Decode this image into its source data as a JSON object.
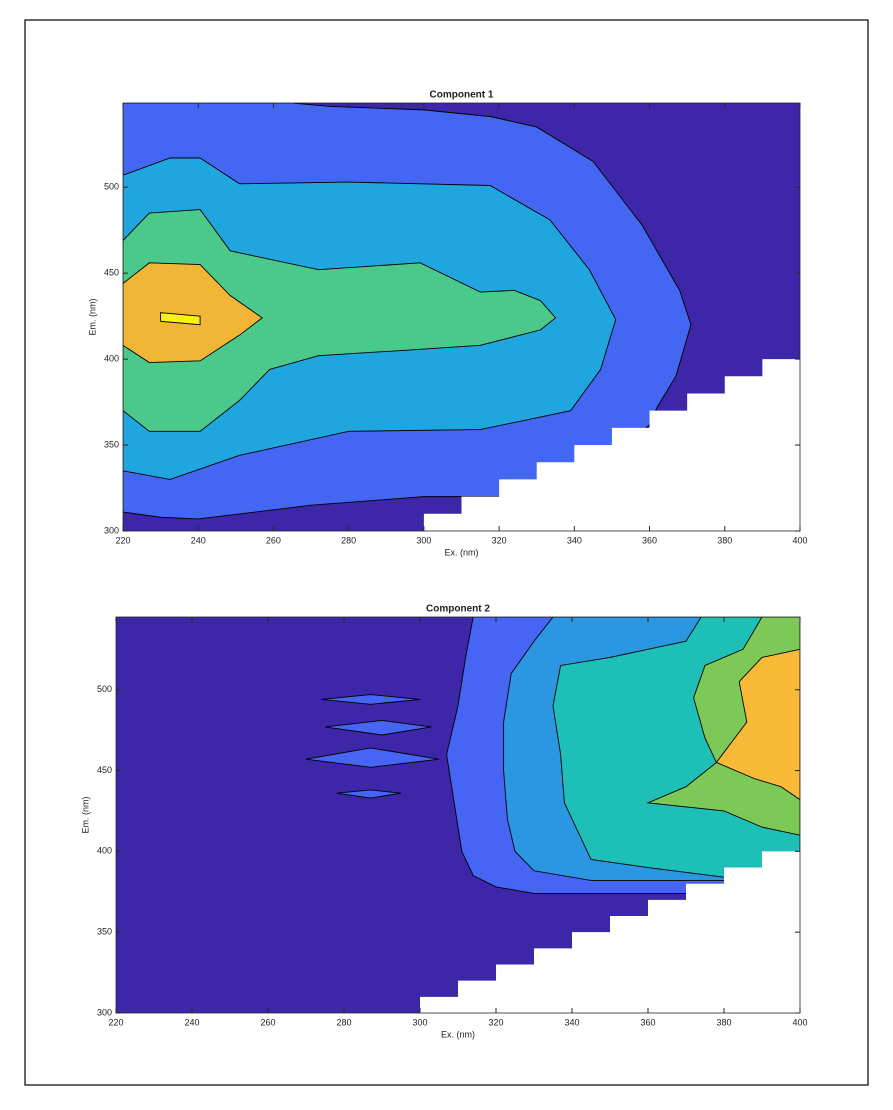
{
  "chart_data": [
    {
      "type": "contour",
      "title": "Component 1",
      "xlabel": "Ex. (nm)",
      "ylabel": "Em. (nm)",
      "xlim": [
        220,
        400
      ],
      "ylim": [
        300,
        549
      ],
      "xticks": [
        220,
        240,
        260,
        280,
        300,
        320,
        340,
        360,
        380,
        400
      ],
      "yticks": [
        300,
        350,
        400,
        450,
        500
      ],
      "regions": [
        {
          "color": "#3e26a8",
          "x": [
            220,
            220,
            400,
            400
          ],
          "y": [
            300,
            549,
            549,
            300
          ]
        },
        {
          "color": "#4467f3",
          "x": [
            220,
            265,
            275,
            300,
            318,
            330,
            345,
            358,
            368,
            371,
            367,
            362,
            360,
            350,
            320,
            300,
            270,
            240,
            230,
            220
          ],
          "y": [
            549,
            549,
            547,
            545,
            541,
            535,
            515,
            478,
            440,
            420,
            390,
            372,
            362,
            340,
            320,
            320,
            315,
            307,
            308,
            311
          ]
        },
        {
          "color": "#1fa6df",
          "x": [
            220,
            232.5,
            240.5,
            251,
            280,
            317.6,
            333.5,
            344,
            351,
            347,
            339,
            315,
            280,
            251,
            232.5,
            220
          ],
          "y": [
            507,
            517,
            517,
            502,
            503,
            501,
            481,
            452,
            423,
            394,
            370,
            359,
            358,
            344,
            330,
            335
          ]
        },
        {
          "color": "#4bc98a",
          "x": [
            220,
            227,
            240.5,
            248.5,
            272,
            299,
            315,
            324,
            331,
            335,
            331,
            315,
            294,
            272,
            259,
            251,
            240.5,
            227,
            220
          ],
          "y": [
            469,
            485,
            487,
            463,
            452,
            456,
            439,
            440,
            434,
            424,
            417,
            408,
            405,
            402,
            394,
            376,
            358,
            358,
            370
          ]
        },
        {
          "color": "#f2b637",
          "x": [
            220,
            227,
            240.5,
            248.5,
            257,
            251,
            240.5,
            227,
            220
          ],
          "y": [
            444,
            456,
            455,
            437,
            424,
            414,
            399,
            398,
            408
          ]
        },
        {
          "color": "#f8f20f",
          "x": [
            230,
            240.5,
            240.5,
            230
          ],
          "y": [
            427,
            425,
            420,
            422
          ]
        },
        {
          "color": "#ffffff",
          "x": [
            300,
            300,
            310,
            310,
            320,
            320,
            330,
            330,
            340,
            340,
            350,
            350,
            360,
            360,
            370,
            370,
            380,
            380,
            390,
            390,
            400,
            400
          ],
          "y": [
            300,
            310,
            310,
            320,
            320,
            330,
            330,
            340,
            340,
            350,
            350,
            360,
            360,
            370,
            370,
            380,
            380,
            390,
            390,
            400,
            400,
            300
          ]
        }
      ]
    },
    {
      "type": "contour",
      "title": "Component 2",
      "xlabel": "Ex. (nm)",
      "ylabel": "Em. (nm)",
      "xlim": [
        220,
        400
      ],
      "ylim": [
        300,
        545
      ],
      "xticks": [
        220,
        240,
        260,
        280,
        300,
        320,
        340,
        360,
        380,
        400
      ],
      "yticks": [
        300,
        350,
        400,
        450,
        500
      ],
      "regions": [
        {
          "color": "#3e26a8",
          "x": [
            220,
            220,
            400,
            400
          ],
          "y": [
            300,
            545,
            545,
            300
          ]
        },
        {
          "color": "#4665f5",
          "x": [
            314,
            312,
            310,
            307,
            309,
            311,
            314,
            320,
            330,
            400,
            400
          ],
          "y": [
            545,
            520,
            490,
            460,
            430,
            400,
            385,
            378,
            374,
            374,
            545
          ]
        },
        {
          "color": "#4665f5",
          "x": [
            274,
            287,
            300,
            287
          ],
          "y": [
            494,
            497,
            494,
            491
          ]
        },
        {
          "color": "#4665f5",
          "x": [
            275,
            290,
            303,
            290
          ],
          "y": [
            477,
            481,
            477,
            472
          ]
        },
        {
          "color": "#4665f5",
          "x": [
            270,
            287,
            305,
            287
          ],
          "y": [
            457,
            464,
            457,
            452
          ]
        },
        {
          "color": "#4665f5",
          "x": [
            278,
            287,
            295,
            287
          ],
          "y": [
            436,
            438,
            436,
            433
          ]
        },
        {
          "color": "#2b97e2",
          "x": [
            335,
            330,
            324,
            322,
            322,
            323,
            325,
            330,
            345,
            400,
            400
          ],
          "y": [
            545,
            530,
            510,
            480,
            450,
            420,
            400,
            388,
            382,
            382,
            545
          ]
        },
        {
          "color": "#1ebfb6",
          "x": [
            374,
            370,
            350,
            337,
            335,
            337,
            338,
            342,
            345,
            360,
            380,
            400,
            400
          ],
          "y": [
            545,
            530,
            520,
            515,
            490,
            460,
            430,
            410,
            395,
            390,
            384,
            384,
            545
          ]
        },
        {
          "color": "#7cc957",
          "x": [
            390,
            385,
            375,
            372,
            375,
            378,
            370,
            360,
            380,
            390,
            400,
            400
          ],
          "y": [
            545,
            525,
            515,
            495,
            470,
            455,
            440,
            430,
            425,
            415,
            410,
            545
          ]
        },
        {
          "color": "#f9ba38",
          "x": [
            400,
            390,
            384,
            386,
            378,
            388,
            395,
            400
          ],
          "y": [
            525,
            520,
            505,
            480,
            455,
            445,
            440,
            432
          ]
        },
        {
          "color": "#ffffff",
          "x": [
            300,
            300,
            310,
            310,
            320,
            320,
            330,
            330,
            340,
            340,
            350,
            350,
            360,
            360,
            370,
            370,
            380,
            380,
            390,
            390,
            400,
            400
          ],
          "y": [
            300,
            310,
            310,
            320,
            320,
            330,
            330,
            340,
            340,
            350,
            350,
            360,
            360,
            370,
            370,
            380,
            380,
            390,
            390,
            400,
            400,
            300
          ]
        }
      ]
    }
  ]
}
